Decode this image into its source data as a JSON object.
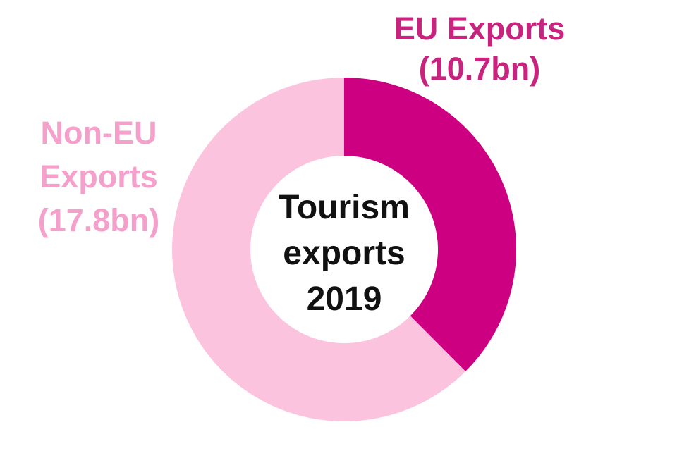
{
  "chart_data": {
    "type": "pie",
    "subtype": "donut",
    "title": "Tourism exports 2019",
    "center_label_lines": [
      "Tourism",
      "exports",
      "2019"
    ],
    "series": [
      {
        "name": "EU Exports",
        "value_bn": 10.7,
        "label_lines": [
          "EU Exports",
          "(10.7bn)"
        ],
        "color": "#CC0080"
      },
      {
        "name": "Non-EU Exports",
        "value_bn": 17.8,
        "label_lines": [
          "Non-EU",
          "Exports",
          "(17.8bn)"
        ],
        "color": "#FCC3DE"
      }
    ],
    "total_bn": 28.5,
    "start_angle_deg": 0,
    "direction": "clockwise",
    "inner_radius_ratio": 0.545,
    "legend_position": "none",
    "background": "#FFFFFF"
  },
  "colors": {
    "eu_label": "#C8247F",
    "non_eu_label": "#F5A0CB",
    "center_text": "#111111"
  }
}
